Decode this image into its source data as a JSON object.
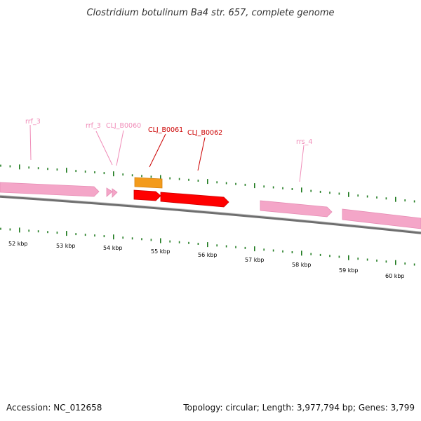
{
  "title": "Clostridium botulinum Ba4 str. 657, complete genome",
  "footer": {
    "accession": "Accession: NC_012658",
    "summary": "Topology: circular; Length: 3,977,794 bp; Genes: 3,799"
  },
  "colors": {
    "rrna_gene": "#f4a6c8",
    "rrna_label": "#f08cb8",
    "highlight_gene": "#ff0000",
    "highlight_label": "#cc0000",
    "orange_feature": "#f39b1c",
    "tick": "#1e7a1e",
    "backbone": "#777777"
  },
  "ruler_labels": [
    "52 kbp",
    "53 kbp",
    "54 kbp",
    "55 kbp",
    "56 kbp",
    "57 kbp",
    "58 kbp",
    "59 kbp",
    "60 kbp"
  ],
  "gene_labels": [
    {
      "id": "rrf_3_a",
      "text": "rrf_3",
      "kind": "rrna"
    },
    {
      "id": "rrf_3_b",
      "text": "rrf_3",
      "kind": "rrna"
    },
    {
      "id": "CLJ_B0060",
      "text": "CLJ_B0060",
      "kind": "rrna"
    },
    {
      "id": "CLJ_B0061",
      "text": "CLJ_B0061",
      "kind": "highlight"
    },
    {
      "id": "CLJ_B0062",
      "text": "CLJ_B0062",
      "kind": "highlight"
    },
    {
      "id": "rrs_4",
      "text": "rrs_4",
      "kind": "rrna"
    }
  ]
}
